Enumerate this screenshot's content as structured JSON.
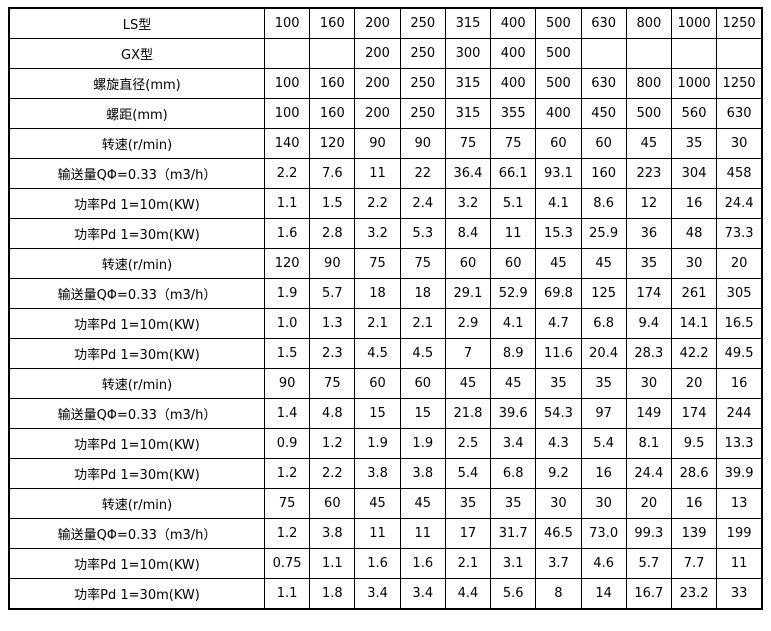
{
  "colors": {
    "border": "#000000",
    "text": "#000000",
    "background": "#ffffff"
  },
  "table": {
    "rows": [
      {
        "label": "LS型",
        "values": [
          "100",
          "160",
          "200",
          "250",
          "315",
          "400",
          "500",
          "630",
          "800",
          "1000",
          "1250"
        ]
      },
      {
        "label": "GX型",
        "values": [
          "",
          "",
          "200",
          "250",
          "300",
          "400",
          "500",
          "",
          "",
          "",
          ""
        ]
      },
      {
        "label": "螺旋直径(mm)",
        "values": [
          "100",
          "160",
          "200",
          "250",
          "315",
          "400",
          "500",
          "630",
          "800",
          "1000",
          "1250"
        ]
      },
      {
        "label": "螺距(mm)",
        "values": [
          "100",
          "160",
          "200",
          "250",
          "315",
          "355",
          "400",
          "450",
          "500",
          "560",
          "630"
        ]
      },
      {
        "label": "转速(r/min)",
        "values": [
          "140",
          "120",
          "90",
          "90",
          "75",
          "75",
          "60",
          "60",
          "45",
          "35",
          "30"
        ]
      },
      {
        "label": "输送量QΦ=0.33（m3/h）",
        "values": [
          "2.2",
          "7.6",
          "11",
          "22",
          "36.4",
          "66.1",
          "93.1",
          "160",
          "223",
          "304",
          "458"
        ]
      },
      {
        "label": "功率Pd 1=10m(KW)",
        "values": [
          "1.1",
          "1.5",
          "2.2",
          "2.4",
          "3.2",
          "5.1",
          "4.1",
          "8.6",
          "12",
          "16",
          "24.4"
        ]
      },
      {
        "label": "功率Pd 1=30m(KW)",
        "values": [
          "1.6",
          "2.8",
          "3.2",
          "5.3",
          "8.4",
          "11",
          "15.3",
          "25.9",
          "36",
          "48",
          "73.3"
        ]
      },
      {
        "label": "转速(r/min)",
        "values": [
          "120",
          "90",
          "75",
          "75",
          "60",
          "60",
          "45",
          "45",
          "35",
          "30",
          "20"
        ]
      },
      {
        "label": "输送量QΦ=0.33（m3/h）",
        "values": [
          "1.9",
          "5.7",
          "18",
          "18",
          "29.1",
          "52.9",
          "69.8",
          "125",
          "174",
          "261",
          "305"
        ]
      },
      {
        "label": "功率Pd 1=10m(KW)",
        "values": [
          "1.0",
          "1.3",
          "2.1",
          "2.1",
          "2.9",
          "4.1",
          "4.7",
          "6.8",
          "9.4",
          "14.1",
          "16.5"
        ]
      },
      {
        "label": "功率Pd 1=30m(KW)",
        "values": [
          "1.5",
          "2.3",
          "4.5",
          "4.5",
          "7",
          "8.9",
          "11.6",
          "20.4",
          "28.3",
          "42.2",
          "49.5"
        ]
      },
      {
        "label": "转速(r/min)",
        "values": [
          "90",
          "75",
          "60",
          "60",
          "45",
          "45",
          "35",
          "35",
          "30",
          "20",
          "16"
        ]
      },
      {
        "label": "输送量QΦ=0.33（m3/h）",
        "values": [
          "1.4",
          "4.8",
          "15",
          "15",
          "21.8",
          "39.6",
          "54.3",
          "97",
          "149",
          "174",
          "244"
        ]
      },
      {
        "label": "功率Pd 1=10m(KW)",
        "values": [
          "0.9",
          "1.2",
          "1.9",
          "1.9",
          "2.5",
          "3.4",
          "4.3",
          "5.4",
          "8.1",
          "9.5",
          "13.3"
        ]
      },
      {
        "label": "功率Pd 1=30m(KW)",
        "values": [
          "1.2",
          "2.2",
          "3.8",
          "3.8",
          "5.4",
          "6.8",
          "9.2",
          "16",
          "24.4",
          "28.6",
          "39.9"
        ]
      },
      {
        "label": "转速(r/min)",
        "values": [
          "75",
          "60",
          "45",
          "45",
          "35",
          "35",
          "30",
          "30",
          "20",
          "16",
          "13"
        ]
      },
      {
        "label": "输送量QΦ=0.33（m3/h）",
        "values": [
          "1.2",
          "3.8",
          "11",
          "11",
          "17",
          "31.7",
          "46.5",
          "73.0",
          "99.3",
          "139",
          "199"
        ]
      },
      {
        "label": "功率Pd 1=10m(KW)",
        "values": [
          "0.75",
          "1.1",
          "1.6",
          "1.6",
          "2.1",
          "3.1",
          "3.7",
          "4.6",
          "5.7",
          "7.7",
          "11"
        ]
      },
      {
        "label": "功率Pd 1=30m(KW)",
        "values": [
          "1.1",
          "1.8",
          "3.4",
          "3.4",
          "4.4",
          "5.6",
          "8",
          "14",
          "16.7",
          "23.2",
          "33"
        ]
      }
    ]
  }
}
